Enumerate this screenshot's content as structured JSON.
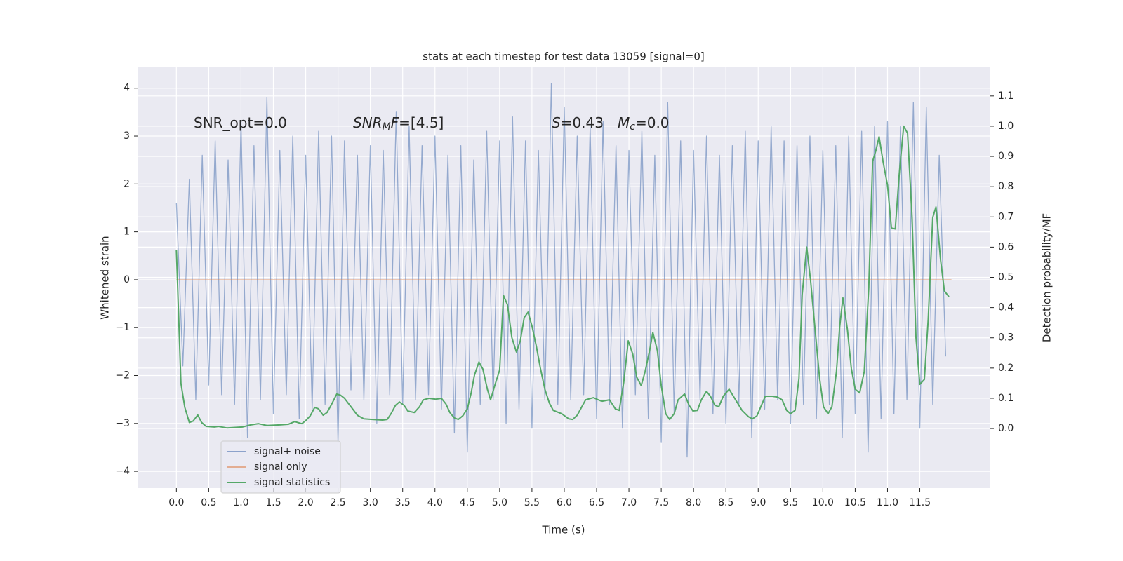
{
  "chart_data": {
    "type": "line",
    "title": "stats at each timestep for test data 13059 [signal=0]",
    "xlabel": "Time (s)",
    "ylabel": "Whitened strain",
    "y2label": "Detection probability/MF",
    "annotations": [
      [
        "SNR_opt=0.0"
      ],
      [
        "SNR",
        "M",
        "F",
        "=[4.5]"
      ],
      [
        "S",
        "=0.43"
      ],
      [
        "M",
        "c",
        "=0.0"
      ]
    ],
    "xlim": [
      -0.59,
      12.58
    ],
    "ylim": [
      -4.35,
      4.45
    ],
    "y2lim": [
      -0.197,
      1.197
    ],
    "xticks": [
      {
        "value": 0,
        "label": "0.0"
      },
      0.5,
      {
        "value": 1,
        "label": "1.0"
      },
      1.5,
      {
        "value": 2,
        "label": "2.0"
      },
      2.5,
      {
        "value": 3,
        "label": "3.0"
      },
      3.5,
      {
        "value": 4,
        "label": "4.0"
      },
      4.5,
      {
        "value": 5,
        "label": "5.0"
      },
      5.5,
      {
        "value": 6,
        "label": "6.0"
      },
      6.5,
      {
        "value": 7,
        "label": "7.0"
      },
      7.5,
      {
        "value": 8,
        "label": "8.0"
      },
      8.5,
      {
        "value": 9,
        "label": "9.0"
      },
      9.5,
      {
        "value": 10,
        "label": "10.0"
      },
      10.5,
      {
        "value": 11,
        "label": "11.0"
      },
      11.5
    ],
    "yticks": [
      {
        "value": -4,
        "label": "−4"
      },
      {
        "value": -3,
        "label": "−3"
      },
      {
        "value": -2,
        "label": "−2"
      },
      {
        "value": -1,
        "label": "−1"
      },
      0,
      1,
      2,
      3,
      4
    ],
    "y2ticks": [
      {
        "value": 0,
        "label": "0.0"
      },
      0.1,
      0.2,
      0.3,
      0.4,
      0.5,
      0.6,
      0.7,
      0.8,
      0.9,
      {
        "value": 1,
        "label": "1.0"
      },
      1.1
    ],
    "grid": true,
    "legend": "lower left",
    "series": [
      {
        "name": "signal+ noise",
        "color": "#4c72b0",
        "x": [
          0,
          0.1,
          0.2,
          0.3,
          0.4,
          0.5,
          0.6,
          0.7,
          0.8,
          0.9,
          1,
          1.1,
          1.2,
          1.3,
          1.4,
          1.5,
          1.6,
          1.7,
          1.8,
          1.9,
          2,
          2.1,
          2.2,
          2.3,
          2.4,
          2.5,
          2.6,
          2.7,
          2.8,
          2.9,
          3,
          3.1,
          3.2,
          3.3,
          3.4,
          3.5,
          3.6,
          3.7,
          3.8,
          3.9,
          4,
          4.1,
          4.2,
          4.3,
          4.4,
          4.5,
          4.6,
          4.7,
          4.8,
          4.9,
          5,
          5.1,
          5.2,
          5.3,
          5.4,
          5.5,
          5.6,
          5.7,
          5.8,
          5.9,
          6,
          6.1,
          6.2,
          6.3,
          6.4,
          6.5,
          6.6,
          6.7,
          6.8,
          6.9,
          7,
          7.1,
          7.2,
          7.3,
          7.4,
          7.5,
          7.6,
          7.7,
          7.8,
          7.9,
          8,
          8.1,
          8.2,
          8.3,
          8.4,
          8.5,
          8.6,
          8.7,
          8.8,
          8.9,
          9,
          9.1,
          9.2,
          9.3,
          9.4,
          9.5,
          9.6,
          9.7,
          9.8,
          9.9,
          10,
          10.1,
          10.2,
          10.3,
          10.4,
          10.5,
          10.6,
          10.7,
          10.8,
          10.9,
          11,
          11.1,
          11.2,
          11.3,
          11.4,
          11.5,
          11.6,
          11.7,
          11.8,
          11.9
        ],
        "values": [
          1.6,
          -1.8,
          2.1,
          -2.5,
          2.6,
          -2.2,
          2.9,
          -2.4,
          2.5,
          -2.6,
          3.3,
          -3.3,
          2.8,
          -2.5,
          3.8,
          -2.8,
          2.7,
          -2.4,
          3.0,
          -2.9,
          2.6,
          -2.7,
          3.1,
          -2.6,
          3.0,
          -3.4,
          2.9,
          -2.3,
          2.6,
          -2.5,
          2.8,
          -3.0,
          2.7,
          -2.4,
          3.5,
          -2.6,
          3.2,
          -2.5,
          2.8,
          -2.4,
          3.0,
          -2.7,
          2.6,
          -3.2,
          2.8,
          -3.6,
          2.5,
          -2.6,
          3.1,
          -2.5,
          2.9,
          -3.0,
          3.4,
          -2.7,
          2.9,
          -3.1,
          2.7,
          -2.5,
          4.1,
          -2.6,
          3.6,
          -2.5,
          3.0,
          -2.4,
          3.2,
          -2.9,
          3.3,
          -2.6,
          2.8,
          -3.1,
          2.7,
          -2.4,
          3.1,
          -2.9,
          2.6,
          -3.4,
          3.7,
          -2.8,
          2.9,
          -3.7,
          2.7,
          -2.5,
          3.0,
          -2.8,
          2.6,
          -3.0,
          2.8,
          -2.6,
          3.1,
          -3.3,
          2.9,
          -2.7,
          3.2,
          -2.5,
          2.9,
          -3.0,
          2.8,
          -2.6,
          3.0,
          -2.9,
          2.7,
          -2.6,
          2.8,
          -3.3,
          3.0,
          -2.8,
          3.1,
          -3.6,
          3.2,
          -2.9,
          3.3,
          -2.8,
          3.2,
          -2.5,
          3.7,
          -3.1,
          3.6,
          -2.6,
          2.6,
          -1.6
        ]
      },
      {
        "name": "signal only",
        "color": "#dd8452",
        "x": [
          0,
          11.99
        ],
        "values": [
          0,
          0
        ]
      },
      {
        "name": "signal statistics",
        "color": "#55a868",
        "axis": "y2",
        "x": [
          0,
          0.07,
          0.13,
          0.2,
          0.26,
          0.33,
          0.39,
          0.46,
          0.59,
          0.65,
          0.78,
          1.02,
          1.15,
          1.27,
          1.4,
          1.6,
          1.73,
          1.83,
          1.94,
          2.0,
          2.07,
          2.14,
          2.2,
          2.27,
          2.33,
          2.4,
          2.48,
          2.54,
          2.6,
          2.7,
          2.8,
          2.9,
          3.03,
          3.19,
          3.26,
          3.32,
          3.39,
          3.45,
          3.52,
          3.58,
          3.68,
          3.76,
          3.82,
          3.91,
          4.01,
          4.1,
          4.17,
          4.23,
          4.3,
          4.36,
          4.43,
          4.5,
          4.56,
          4.61,
          4.68,
          4.74,
          4.81,
          4.86,
          4.93,
          5.0,
          5.06,
          5.12,
          5.19,
          5.26,
          5.32,
          5.38,
          5.44,
          5.5,
          5.57,
          5.63,
          5.7,
          5.77,
          5.83,
          5.96,
          6.07,
          6.13,
          6.2,
          6.33,
          6.45,
          6.58,
          6.7,
          6.79,
          6.85,
          6.92,
          6.99,
          7.06,
          7.12,
          7.19,
          7.25,
          7.32,
          7.37,
          7.44,
          7.5,
          7.57,
          7.63,
          7.7,
          7.76,
          7.86,
          7.93,
          7.99,
          8.06,
          8.12,
          8.2,
          8.26,
          8.33,
          8.39,
          8.46,
          8.55,
          8.65,
          8.75,
          8.85,
          8.91,
          8.98,
          9.04,
          9.11,
          9.21,
          9.3,
          9.37,
          9.44,
          9.5,
          9.57,
          9.63,
          9.68,
          9.75,
          9.81,
          9.88,
          9.95,
          10.01,
          10.08,
          10.14,
          10.21,
          10.26,
          10.31,
          10.38,
          10.44,
          10.5,
          10.57,
          10.64,
          10.71,
          10.77,
          10.82,
          10.87,
          10.93,
          11.0,
          11.06,
          11.12,
          11.18,
          11.25,
          11.31,
          11.38,
          11.44,
          11.5,
          11.57,
          11.63,
          11.7,
          11.75,
          11.82,
          11.88,
          11.95
        ],
        "values": [
          0.59,
          0.15,
          0.07,
          0.02,
          0.025,
          0.045,
          0.02,
          0.007,
          0.005,
          0.007,
          0.002,
          0.005,
          0.012,
          0.016,
          0.01,
          0.012,
          0.014,
          0.023,
          0.016,
          0.026,
          0.042,
          0.07,
          0.065,
          0.044,
          0.053,
          0.08,
          0.114,
          0.11,
          0.1,
          0.072,
          0.044,
          0.032,
          0.03,
          0.028,
          0.03,
          0.049,
          0.077,
          0.088,
          0.077,
          0.058,
          0.053,
          0.072,
          0.095,
          0.1,
          0.097,
          0.1,
          0.081,
          0.053,
          0.035,
          0.03,
          0.042,
          0.065,
          0.118,
          0.176,
          0.22,
          0.197,
          0.13,
          0.095,
          0.146,
          0.193,
          0.44,
          0.41,
          0.3,
          0.253,
          0.29,
          0.367,
          0.385,
          0.339,
          0.27,
          0.2,
          0.13,
          0.084,
          0.06,
          0.049,
          0.032,
          0.03,
          0.044,
          0.095,
          0.102,
          0.09,
          0.095,
          0.065,
          0.06,
          0.153,
          0.29,
          0.246,
          0.17,
          0.142,
          0.188,
          0.258,
          0.318,
          0.258,
          0.142,
          0.049,
          0.03,
          0.049,
          0.095,
          0.114,
          0.077,
          0.058,
          0.06,
          0.095,
          0.123,
          0.107,
          0.077,
          0.072,
          0.107,
          0.13,
          0.095,
          0.06,
          0.039,
          0.032,
          0.042,
          0.072,
          0.107,
          0.107,
          0.104,
          0.095,
          0.06,
          0.049,
          0.06,
          0.165,
          0.443,
          0.6,
          0.49,
          0.327,
          0.165,
          0.072,
          0.049,
          0.072,
          0.188,
          0.336,
          0.432,
          0.327,
          0.199,
          0.13,
          0.118,
          0.188,
          0.466,
          0.884,
          0.919,
          0.965,
          0.884,
          0.805,
          0.664,
          0.66,
          0.838,
          1.0,
          0.977,
          0.698,
          0.302,
          0.146,
          0.162,
          0.362,
          0.698,
          0.733,
          0.559,
          0.455,
          0.436
        ]
      }
    ]
  }
}
